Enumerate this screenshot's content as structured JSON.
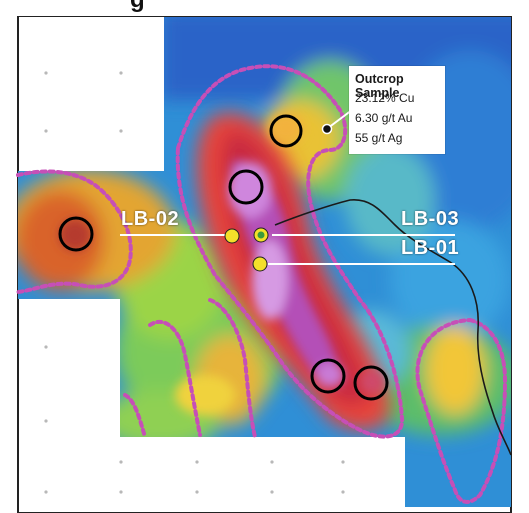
{
  "header": {
    "title_fragment": "g"
  },
  "map": {
    "anomaly_outline_color": "#c64fb7",
    "drillhole_color": "#f4e02a",
    "drillhole_active_color": "#3c9a3c",
    "target_circle_color": "#000000",
    "grid_point_color": "#b8b8b8"
  },
  "callout": {
    "title": "Outcrop Sample",
    "lines": [
      "23.12% Cu",
      "6.30 g/t Au",
      "55 g/t Ag"
    ]
  },
  "drillholes": [
    {
      "id": "LB-02",
      "label": "LB-02"
    },
    {
      "id": "LB-03",
      "label": "LB-03"
    },
    {
      "id": "LB-01",
      "label": "LB-01"
    }
  ]
}
